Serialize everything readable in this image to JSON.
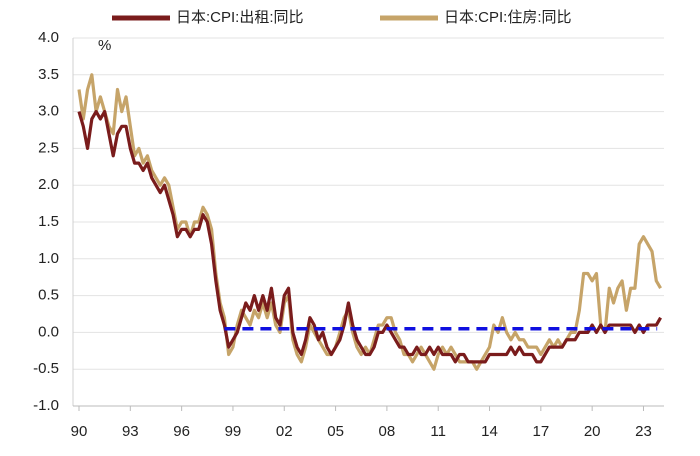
{
  "chart_data": {
    "type": "line",
    "annotation": "%",
    "x": [
      1990.0,
      1990.25,
      1990.5,
      1990.75,
      1991.0,
      1991.25,
      1991.5,
      1991.75,
      1992.0,
      1992.25,
      1992.5,
      1992.75,
      1993.0,
      1993.25,
      1993.5,
      1993.75,
      1994.0,
      1994.25,
      1994.5,
      1994.75,
      1995.0,
      1995.25,
      1995.5,
      1995.75,
      1996.0,
      1996.25,
      1996.5,
      1996.75,
      1997.0,
      1997.25,
      1997.5,
      1997.75,
      1998.0,
      1998.25,
      1998.5,
      1998.75,
      1999.0,
      1999.25,
      1999.5,
      1999.75,
      2000.0,
      2000.25,
      2000.5,
      2000.75,
      2001.0,
      2001.25,
      2001.5,
      2001.75,
      2002.0,
      2002.25,
      2002.5,
      2002.75,
      2003.0,
      2003.25,
      2003.5,
      2003.75,
      2004.0,
      2004.25,
      2004.5,
      2004.75,
      2005.0,
      2005.25,
      2005.5,
      2005.75,
      2006.0,
      2006.25,
      2006.5,
      2006.75,
      2007.0,
      2007.25,
      2007.5,
      2007.75,
      2008.0,
      2008.25,
      2008.5,
      2008.75,
      2009.0,
      2009.25,
      2009.5,
      2009.75,
      2010.0,
      2010.25,
      2010.5,
      2010.75,
      2011.0,
      2011.25,
      2011.5,
      2011.75,
      2012.0,
      2012.25,
      2012.5,
      2012.75,
      2013.0,
      2013.25,
      2013.5,
      2013.75,
      2014.0,
      2014.25,
      2014.5,
      2014.75,
      2015.0,
      2015.25,
      2015.5,
      2015.75,
      2016.0,
      2016.25,
      2016.5,
      2016.75,
      2017.0,
      2017.25,
      2017.5,
      2017.75,
      2018.0,
      2018.25,
      2018.5,
      2018.75,
      2019.0,
      2019.25,
      2019.5,
      2019.75,
      2020.0,
      2020.25,
      2020.5,
      2020.75,
      2021.0,
      2021.25,
      2021.5,
      2021.75,
      2022.0,
      2022.25,
      2022.5,
      2022.75,
      2023.0,
      2023.25,
      2023.5,
      2023.75,
      2024.0
    ],
    "series": [
      {
        "name": "日本:CPI:出租:同比",
        "color": "#7a1c1c",
        "values": [
          3.0,
          2.8,
          2.5,
          2.9,
          3.0,
          2.9,
          3.0,
          2.7,
          2.4,
          2.7,
          2.8,
          2.8,
          2.5,
          2.3,
          2.3,
          2.2,
          2.3,
          2.1,
          2.0,
          1.9,
          2.0,
          1.8,
          1.6,
          1.3,
          1.4,
          1.4,
          1.3,
          1.4,
          1.4,
          1.6,
          1.5,
          1.2,
          0.7,
          0.3,
          0.1,
          -0.2,
          -0.1,
          0.0,
          0.2,
          0.4,
          0.3,
          0.5,
          0.3,
          0.5,
          0.3,
          0.6,
          0.2,
          0.1,
          0.5,
          0.6,
          0.0,
          -0.2,
          -0.3,
          -0.1,
          0.2,
          0.1,
          -0.1,
          0.0,
          -0.2,
          -0.3,
          -0.2,
          -0.1,
          0.1,
          0.4,
          0.1,
          -0.1,
          -0.2,
          -0.3,
          -0.3,
          -0.2,
          0.0,
          0.0,
          0.1,
          0.0,
          -0.1,
          -0.2,
          -0.2,
          -0.3,
          -0.3,
          -0.2,
          -0.3,
          -0.3,
          -0.2,
          -0.3,
          -0.2,
          -0.3,
          -0.3,
          -0.3,
          -0.4,
          -0.3,
          -0.3,
          -0.4,
          -0.4,
          -0.4,
          -0.4,
          -0.4,
          -0.3,
          -0.3,
          -0.3,
          -0.3,
          -0.3,
          -0.2,
          -0.3,
          -0.2,
          -0.3,
          -0.3,
          -0.3,
          -0.4,
          -0.4,
          -0.3,
          -0.2,
          -0.2,
          -0.2,
          -0.2,
          -0.1,
          -0.1,
          -0.1,
          0.0,
          0.0,
          0.0,
          0.1,
          0.0,
          0.1,
          0.0,
          0.1,
          0.1,
          0.1,
          0.1,
          0.1,
          0.1,
          0.0,
          0.1,
          0.0,
          0.1,
          0.1,
          0.1,
          0.2
        ]
      },
      {
        "name": "日本:CPI:住房:同比",
        "color": "#c6a469",
        "values": [
          3.3,
          2.9,
          3.3,
          3.5,
          3.0,
          3.2,
          3.0,
          2.8,
          2.7,
          3.3,
          3.0,
          3.2,
          2.8,
          2.4,
          2.5,
          2.3,
          2.4,
          2.2,
          2.1,
          2.0,
          2.1,
          2.0,
          1.7,
          1.4,
          1.5,
          1.5,
          1.3,
          1.5,
          1.5,
          1.7,
          1.6,
          1.4,
          0.8,
          0.4,
          0.2,
          -0.3,
          -0.2,
          0.1,
          0.3,
          0.2,
          0.1,
          0.3,
          0.2,
          0.4,
          0.2,
          0.4,
          0.1,
          0.0,
          0.4,
          0.5,
          -0.1,
          -0.3,
          -0.4,
          -0.2,
          0.1,
          0.0,
          -0.1,
          -0.2,
          -0.3,
          -0.3,
          -0.2,
          0.0,
          0.2,
          0.3,
          0.0,
          -0.2,
          -0.3,
          -0.2,
          -0.3,
          -0.1,
          0.1,
          0.1,
          0.2,
          0.2,
          0.0,
          -0.1,
          -0.3,
          -0.3,
          -0.4,
          -0.3,
          -0.2,
          -0.3,
          -0.4,
          -0.5,
          -0.3,
          -0.2,
          -0.3,
          -0.2,
          -0.3,
          -0.4,
          -0.4,
          -0.4,
          -0.4,
          -0.5,
          -0.4,
          -0.3,
          -0.2,
          0.1,
          0.0,
          0.2,
          0.0,
          -0.1,
          0.0,
          -0.1,
          -0.1,
          -0.2,
          -0.2,
          -0.2,
          -0.3,
          -0.2,
          -0.1,
          -0.2,
          -0.1,
          -0.2,
          -0.1,
          0.0,
          0.0,
          0.3,
          0.8,
          0.8,
          0.7,
          0.8,
          0.1,
          0.0,
          0.6,
          0.4,
          0.6,
          0.7,
          0.3,
          0.6,
          0.6,
          1.2,
          1.3,
          1.2,
          1.1,
          0.7,
          0.6
        ]
      }
    ],
    "hline": {
      "y": 0.05,
      "x": [
        1998.5,
        2023.8
      ],
      "color": "#1010e0"
    },
    "xlim": [
      1990,
      2024.2
    ],
    "xticks": [
      {
        "value": 1990,
        "label": "90"
      },
      {
        "value": 1993,
        "label": "93"
      },
      {
        "value": 1996,
        "label": "96"
      },
      {
        "value": 1999,
        "label": "99"
      },
      {
        "value": 2002,
        "label": "02"
      },
      {
        "value": 2005,
        "label": "05"
      },
      {
        "value": 2008,
        "label": "08"
      },
      {
        "value": 2011,
        "label": "11"
      },
      {
        "value": 2014,
        "label": "14"
      },
      {
        "value": 2017,
        "label": "17"
      },
      {
        "value": 2020,
        "label": "20"
      },
      {
        "value": 2023,
        "label": "23"
      }
    ],
    "ylim": [
      -1,
      4
    ],
    "yticks": [
      {
        "value": -1,
        "label": "-1.0"
      },
      {
        "value": -0.5,
        "label": "-0.5"
      },
      {
        "value": 0,
        "label": "0.0"
      },
      {
        "value": 0.5,
        "label": "0.5"
      },
      {
        "value": 1,
        "label": "1.0"
      },
      {
        "value": 1.5,
        "label": "1.5"
      },
      {
        "value": 2,
        "label": "2.0"
      },
      {
        "value": 2.5,
        "label": "2.5"
      },
      {
        "value": 3,
        "label": "3.0"
      },
      {
        "value": 3.5,
        "label": "3.5"
      },
      {
        "value": 4,
        "label": "4.0"
      }
    ],
    "grid": true,
    "legend": "top"
  }
}
